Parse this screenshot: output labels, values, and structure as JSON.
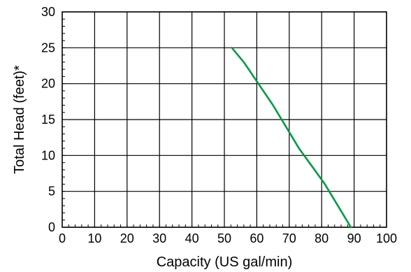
{
  "chart_data": {
    "type": "line",
    "xlabel": "Capacity (US gal/min)",
    "ylabel": "Total Head (feet)*",
    "xlim": [
      0,
      100
    ],
    "ylim": [
      0,
      30
    ],
    "x_ticks": [
      "0",
      "10",
      "20",
      "30",
      "40",
      "50",
      "60",
      "70",
      "80",
      "90",
      "100"
    ],
    "y_ticks": [
      "0",
      "5",
      "10",
      "15",
      "20",
      "25",
      "30"
    ],
    "grid": true,
    "series": [
      {
        "color": "#009a44",
        "points": [
          [
            52.3,
            25
          ],
          [
            56,
            23
          ],
          [
            60.5,
            20
          ],
          [
            65,
            17
          ],
          [
            69,
            14
          ],
          [
            73,
            11
          ],
          [
            77,
            8.5
          ],
          [
            81,
            6
          ],
          [
            85,
            3
          ],
          [
            89,
            0
          ]
        ]
      }
    ]
  }
}
